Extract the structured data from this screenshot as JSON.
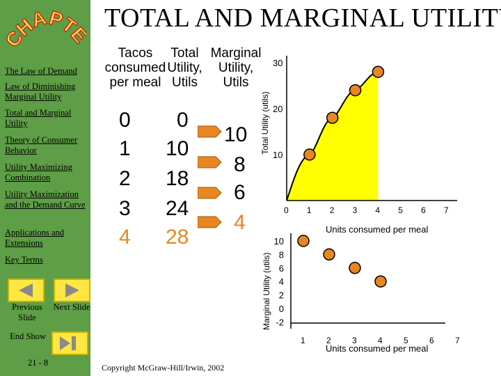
{
  "slide_title": "TOTAL AND MARGINAL UTILITY",
  "chapter_logo": "CHAPTER",
  "sidebar": {
    "items": [
      {
        "label": "The Law of Demand"
      },
      {
        "label": "Law of Diminishing Marginal Utility"
      },
      {
        "label": "Total and Marginal Utility"
      },
      {
        "label": "Theory of Consumer Behavior"
      },
      {
        "label": "Utility Maximizing Combination"
      },
      {
        "label": "Utility Maximization and the Demand Curve"
      },
      {
        "label": "Applications and Extensions"
      },
      {
        "label": "Key Terms"
      }
    ],
    "previous_label": "Previous Slide",
    "next_label": "Next Slide",
    "end_show_label": "End Show",
    "page_number": "21 - 8"
  },
  "table": {
    "headers": {
      "tacos": "Tacos consumed per meal",
      "total": "Total Utility, Utils",
      "marginal": "Marginal Utility, Utils"
    },
    "rows": [
      {
        "tacos": "0",
        "total": "0",
        "marginal": ""
      },
      {
        "tacos": "1",
        "total": "10",
        "marginal": "10"
      },
      {
        "tacos": "2",
        "total": "18",
        "marginal": "8"
      },
      {
        "tacos": "3",
        "total": "24",
        "marginal": "6"
      },
      {
        "tacos": "4",
        "total": "28",
        "marginal": "4"
      }
    ]
  },
  "copyright": "Copyright McGraw-Hill/Irwin, 2002",
  "colors": {
    "sidebar": "#5e9e46",
    "button": "#ffe640",
    "point": "#e8861f",
    "curve_fill": "#ffff00",
    "arrow": "#e8861f"
  },
  "chart_data": [
    {
      "type": "area",
      "x": [
        0,
        1,
        2,
        3,
        4
      ],
      "y": [
        0,
        10,
        18,
        24,
        28
      ],
      "x_ticks": [
        "0",
        "1",
        "2",
        "3",
        "4",
        "5",
        "6",
        "7"
      ],
      "y_ticks": [
        "10",
        "20",
        "30"
      ],
      "xlabel": "Units consumed per meal",
      "ylabel": "Total Utility (utils)",
      "xlim": [
        0,
        7
      ],
      "ylim": [
        0,
        30
      ]
    },
    {
      "type": "scatter",
      "x": [
        1,
        2,
        3,
        4
      ],
      "y": [
        10,
        8,
        6,
        4
      ],
      "x_ticks": [
        "1",
        "2",
        "3",
        "4",
        "5",
        "6",
        "7"
      ],
      "y_ticks": [
        "10",
        "8",
        "6",
        "4",
        "2",
        "0",
        "-2"
      ],
      "xlabel": "Units consumed per meal",
      "ylabel": "Marginal Utility (utils)",
      "xlim": [
        1,
        7
      ],
      "ylim": [
        -2,
        10
      ]
    }
  ]
}
